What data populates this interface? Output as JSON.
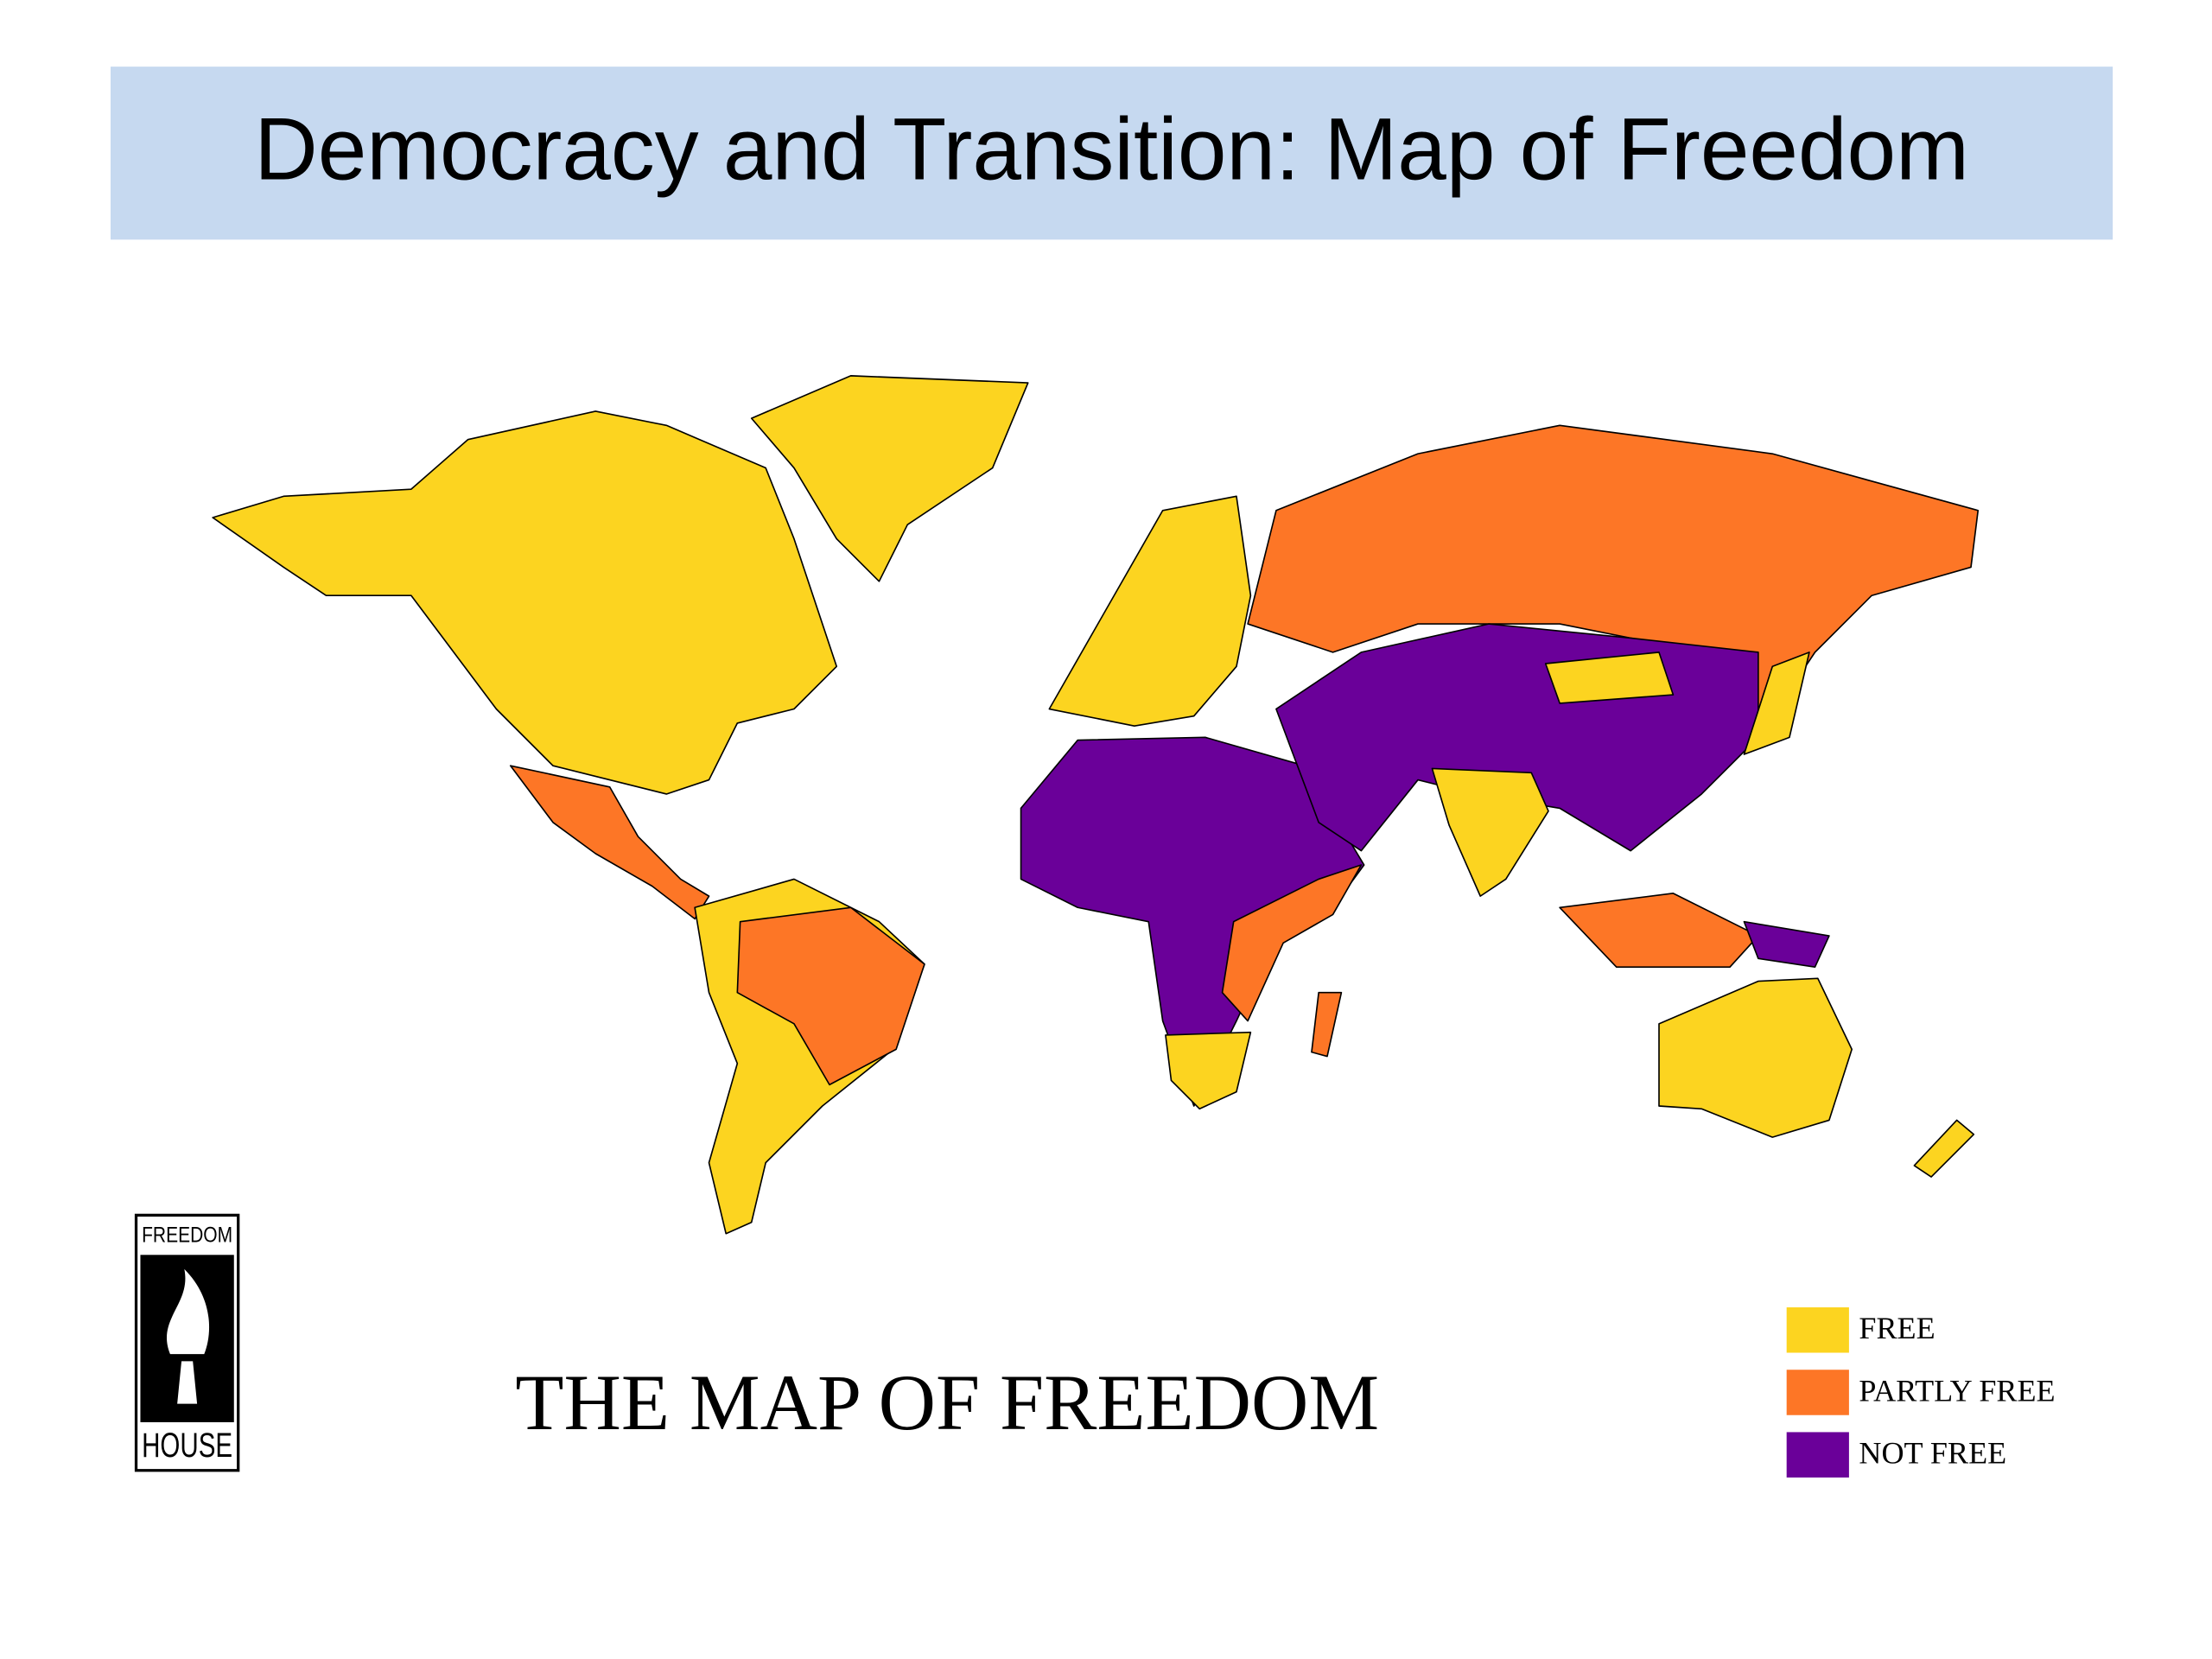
{
  "header": {
    "title": "Democracy and Transition: Map of Freedom"
  },
  "map": {
    "title": "THE MAP OF FREEDOM",
    "legend": [
      {
        "label": "FREE",
        "color": "#fcd420"
      },
      {
        "label": "PARTLY FREE",
        "color": "#fd7626"
      },
      {
        "label": "NOT FREE",
        "color": "#6a0099"
      }
    ]
  },
  "logo": {
    "top": "FREEDOM",
    "bottom": "HOUSE"
  }
}
